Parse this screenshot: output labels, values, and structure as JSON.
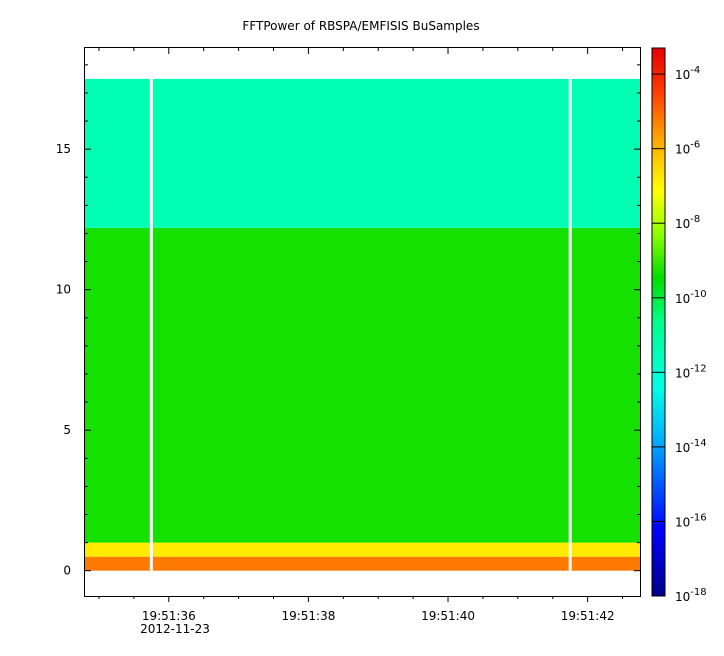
{
  "chart_data": {
    "type": "heatmap",
    "title": "FFTPower of RBSPA/EMFISIS  BuSamples",
    "xlabel": "",
    "ylabel": "",
    "x_date_label": "2012-11-23",
    "x_ticks": [
      {
        "label": "19:51:36",
        "t": 36
      },
      {
        "label": "19:51:38",
        "t": 38
      },
      {
        "label": "19:51:40",
        "t": 40
      },
      {
        "label": "19:51:42",
        "t": 42
      }
    ],
    "xlim": [
      34.8,
      42.75
    ],
    "y_ticks": [
      0,
      5,
      10,
      15
    ],
    "ylim": [
      -0.9,
      18.6
    ],
    "data_y_range": [
      0,
      17.5
    ],
    "gaps_x": [
      35.75,
      41.75
    ],
    "colorbar": {
      "scale": "log",
      "range_exp": [
        -18,
        -3.3
      ],
      "tick_exponents": [
        -4,
        -6,
        -8,
        -10,
        -12,
        -14,
        -16,
        -18
      ],
      "tick_base": "10"
    },
    "bands": [
      {
        "y_from": 0,
        "y_to": 0.5,
        "log_power": -5.2
      },
      {
        "y_from": 0.5,
        "y_to": 1.0,
        "log_power": -6.8
      },
      {
        "y_from": 1.0,
        "y_to": 12.2,
        "log_power": -9.3
      },
      {
        "y_from": 12.2,
        "y_to": 17.5,
        "log_power": -11.4
      }
    ],
    "grid": false
  },
  "colors": {
    "background": "#ffffff",
    "gap": "#ffffff",
    "axis": "#000000"
  }
}
